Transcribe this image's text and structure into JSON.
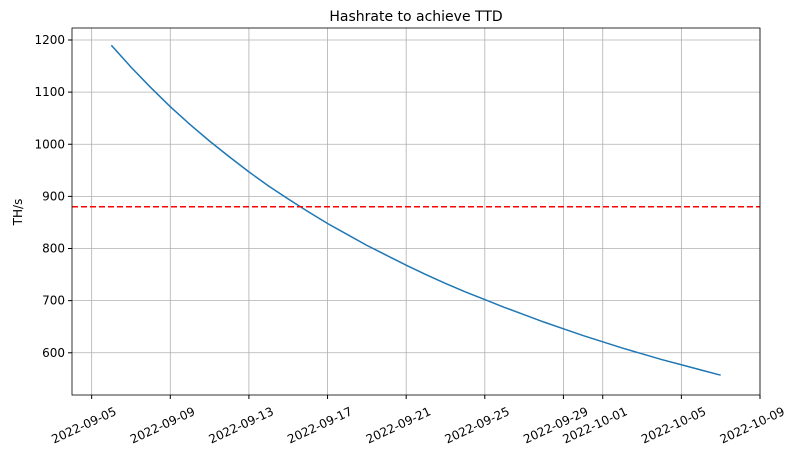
{
  "chart_data": {
    "type": "line",
    "title": "Hashrate to achieve TTD",
    "y_label": "TH/s",
    "x": [
      "2022-09-06",
      "2022-09-07",
      "2022-09-08",
      "2022-09-09",
      "2022-09-10",
      "2022-09-11",
      "2022-09-12",
      "2022-09-13",
      "2022-09-14",
      "2022-09-15",
      "2022-09-16",
      "2022-09-17",
      "2022-09-18",
      "2022-09-19",
      "2022-09-20",
      "2022-09-21",
      "2022-09-22",
      "2022-09-23",
      "2022-09-24",
      "2022-09-25",
      "2022-09-26",
      "2022-09-27",
      "2022-09-28",
      "2022-09-29",
      "2022-09-30",
      "2022-10-01",
      "2022-10-02",
      "2022-10-03",
      "2022-10-04",
      "2022-10-05",
      "2022-10-06",
      "2022-10-07"
    ],
    "series": [
      {
        "color": "#1f77b4",
        "values": [
          1190,
          1148,
          1109,
          1072,
          1038,
          1006,
          976,
          947,
          920,
          895,
          871,
          848,
          827,
          806,
          787,
          768,
          750,
          733,
          717,
          702,
          687,
          673,
          659,
          646,
          633,
          621,
          609,
          598,
          587,
          577,
          567,
          557
        ]
      }
    ],
    "reference_line": {
      "value": 880,
      "color": "#ff0000",
      "dashed": true
    },
    "xlim": [
      "2022-09-04",
      "2022-10-09"
    ],
    "xticks": [
      "2022-09-05",
      "2022-09-09",
      "2022-09-13",
      "2022-09-17",
      "2022-09-21",
      "2022-09-25",
      "2022-09-29",
      "2022-10-01",
      "2022-10-05",
      "2022-10-09"
    ],
    "ylim": [
      519,
      1223
    ],
    "yticks": [
      600,
      700,
      800,
      900,
      1000,
      1100,
      1200
    ],
    "grid": true
  }
}
